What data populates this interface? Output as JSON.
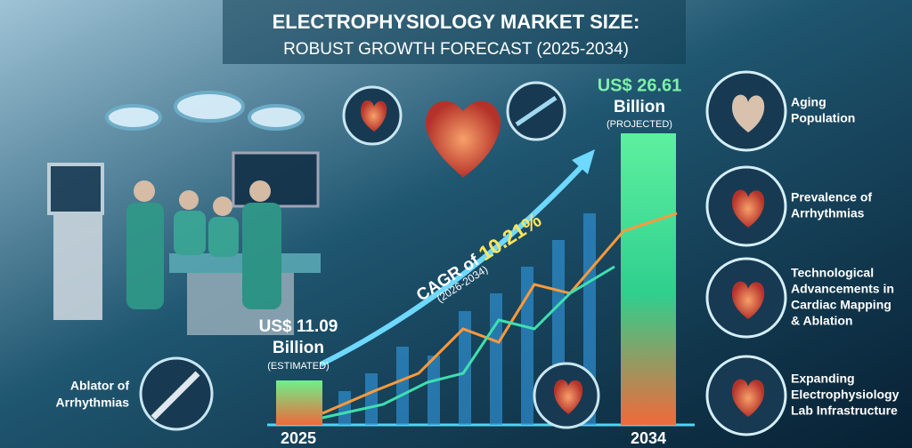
{
  "header": {
    "title": "ELECTROPHYSIOLOGY MARKET SIZE:",
    "subtitle": "ROBUST GROWTH FORECAST (2025-2034)"
  },
  "cagr": {
    "text": "CAGR of ",
    "rate": "10.21%",
    "period": "(2026-2034)"
  },
  "start": {
    "amount": "US$ 11.09",
    "unit": "Billion",
    "note": "(ESTIMATED)",
    "year": "2025"
  },
  "end": {
    "amount": "US$ 26.61",
    "unit": "Billion",
    "note": "(PROJECTED)",
    "year": "2034"
  },
  "left_badge": {
    "lines": [
      "Ablator of",
      "Arrhythmias"
    ]
  },
  "drivers": [
    {
      "lines": [
        "Aging",
        "Population"
      ]
    },
    {
      "lines": [
        "Prevalence of",
        "Arrhythmias"
      ]
    },
    {
      "lines": [
        "Technological",
        "Advancements in",
        "Cardiac Mapping",
        "& Ablation"
      ]
    },
    {
      "lines": [
        "Expanding",
        "Electrophysiology",
        "Lab Infrastructure"
      ]
    }
  ]
}
